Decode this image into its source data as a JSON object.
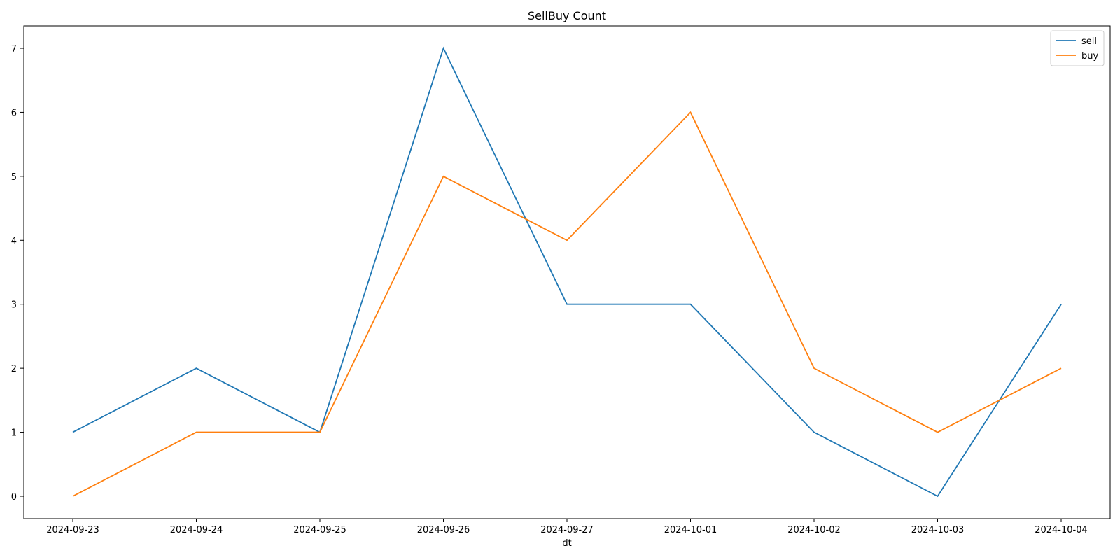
{
  "chart_data": {
    "type": "line",
    "title": "SellBuy Count",
    "xlabel": "dt",
    "ylabel": "",
    "categories": [
      "2024-09-23",
      "2024-09-24",
      "2024-09-25",
      "2024-09-26",
      "2024-09-27",
      "2024-10-01",
      "2024-10-02",
      "2024-10-03",
      "2024-10-04"
    ],
    "yticks": [
      0,
      1,
      2,
      3,
      4,
      5,
      6,
      7
    ],
    "ylim": [
      -0.35,
      7.35
    ],
    "grid": false,
    "legend_position": "top-right",
    "series": [
      {
        "name": "sell",
        "color": "#1f77b4",
        "values": [
          1,
          2,
          1,
          7,
          3,
          3,
          1,
          0,
          3
        ]
      },
      {
        "name": "buy",
        "color": "#ff7f0e",
        "values": [
          0,
          1,
          1,
          5,
          4,
          6,
          2,
          1,
          2
        ]
      }
    ]
  }
}
